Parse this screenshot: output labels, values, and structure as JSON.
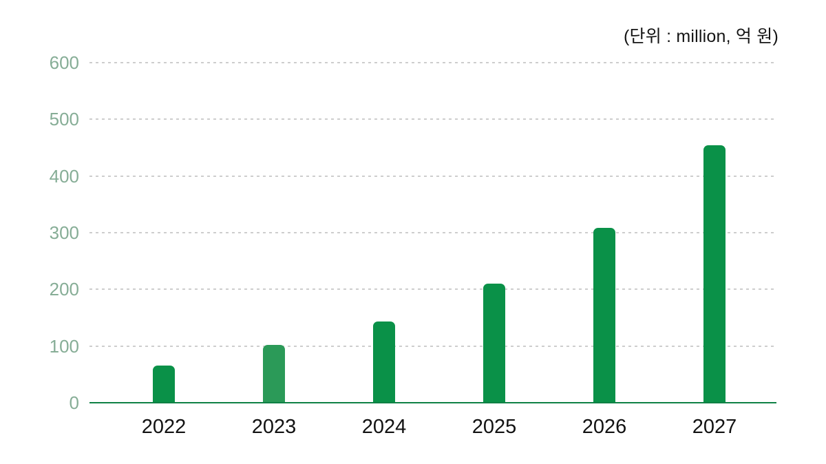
{
  "unit_note": "(단위 : million, 억 원)",
  "colors": {
    "background": "#ffffff",
    "bar": "#0a9148",
    "axis_line": "#0e8044",
    "y_label": "#86ad96",
    "x_label": "#121212",
    "gridline": "#cdcdcd"
  },
  "chart_data": {
    "type": "bar",
    "title": "",
    "unit_note": "(단위 : million, 억 원)",
    "categories": [
      "2022",
      "2023",
      "2024",
      "2025",
      "2026",
      "2027"
    ],
    "values": [
      66,
      102,
      143,
      210,
      309,
      454
    ],
    "bar_colors": [
      "#0a9148",
      "#2b9a58",
      "#0a9148",
      "#0a9148",
      "#0a9148",
      "#0a9148"
    ],
    "yticks": [
      0,
      100,
      200,
      300,
      400,
      500,
      600
    ],
    "ylim": [
      0,
      600
    ],
    "xlabel": "",
    "ylabel": "",
    "grid": "horizontal-dotted",
    "legend": "none",
    "baseline": "solid-green"
  }
}
